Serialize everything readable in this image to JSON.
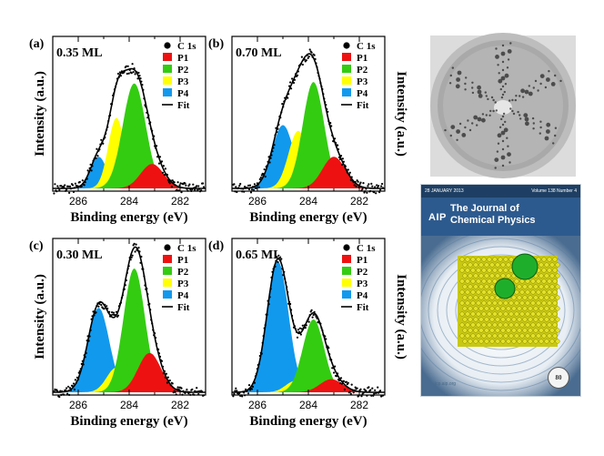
{
  "chart_data": [
    {
      "type": "area",
      "panel_label": "(a)",
      "coverage": "0.35 ML",
      "xlabel": "Binding energy (eV)",
      "ylabel": "Intensity (a.u.)",
      "x_reversed": true,
      "xlim": [
        287,
        281
      ],
      "xticks": [
        "286",
        "284",
        "282"
      ],
      "legend": [
        "C 1s",
        "P1",
        "P2",
        "P3",
        "P4",
        "Fit"
      ],
      "series": [
        {
          "name": "P1",
          "center": 283.1,
          "height": 0.17,
          "width": 0.45
        },
        {
          "name": "P2",
          "center": 283.8,
          "height": 0.73,
          "width": 0.45
        },
        {
          "name": "P3",
          "center": 284.5,
          "height": 0.49,
          "width": 0.32
        },
        {
          "name": "P4",
          "center": 285.2,
          "height": 0.22,
          "width": 0.32
        }
      ]
    },
    {
      "type": "area",
      "panel_label": "(b)",
      "coverage": "0.70 ML",
      "xlabel": "Binding energy (eV)",
      "ylabel": "Intensity (a.u.)",
      "x_reversed": true,
      "xlim": [
        287,
        281
      ],
      "xticks": [
        "286",
        "284",
        "282"
      ],
      "legend": [
        "C 1s",
        "P1",
        "P2",
        "P3",
        "P4",
        "Fit"
      ],
      "series": [
        {
          "name": "P1",
          "center": 283.0,
          "height": 0.22,
          "width": 0.45
        },
        {
          "name": "P2",
          "center": 283.8,
          "height": 0.74,
          "width": 0.42
        },
        {
          "name": "P3",
          "center": 284.4,
          "height": 0.4,
          "width": 0.38
        },
        {
          "name": "P4",
          "center": 285.0,
          "height": 0.44,
          "width": 0.42
        }
      ]
    },
    {
      "type": "area",
      "panel_label": "(c)",
      "coverage": "0.30 ML",
      "xlabel": "Binding energy (eV)",
      "ylabel": "Intensity (a.u.)",
      "x_reversed": true,
      "xlim": [
        287,
        281
      ],
      "xticks": [
        "286",
        "284",
        "282"
      ],
      "legend": [
        "C 1s",
        "P1",
        "P2",
        "P3",
        "P4",
        "Fit"
      ],
      "series": [
        {
          "name": "P1",
          "center": 283.2,
          "height": 0.27,
          "width": 0.45
        },
        {
          "name": "P2",
          "center": 283.8,
          "height": 0.85,
          "width": 0.42
        },
        {
          "name": "P3",
          "center": 284.5,
          "height": 0.17,
          "width": 0.38
        },
        {
          "name": "P4",
          "center": 285.2,
          "height": 0.58,
          "width": 0.42
        }
      ]
    },
    {
      "type": "area",
      "panel_label": "(d)",
      "coverage": "0.65 ML",
      "xlabel": "Binding energy (eV)",
      "ylabel": "Intensity (a.u.)",
      "x_reversed": true,
      "xlim": [
        287,
        281
      ],
      "xticks": [
        "286",
        "284",
        "282"
      ],
      "legend": [
        "C 1s",
        "P1",
        "P2",
        "P3",
        "P4",
        "Fit"
      ],
      "series": [
        {
          "name": "P1",
          "center": 283.1,
          "height": 0.09,
          "width": 0.45
        },
        {
          "name": "P2",
          "center": 283.8,
          "height": 0.5,
          "width": 0.42
        },
        {
          "name": "P3",
          "center": 284.5,
          "height": 0.08,
          "width": 0.38
        },
        {
          "name": "P4",
          "center": 285.2,
          "height": 0.9,
          "width": 0.42
        }
      ]
    }
  ],
  "colors": {
    "P1": "#ee1111",
    "P2": "#33cc11",
    "P3": "#ffff00",
    "P4": "#1199ee",
    "data": "#000000"
  },
  "cover": {
    "date": "28 JANUARY 2013",
    "volume": "Volume 138 Number 4",
    "publisher": "AIP",
    "title_line1": "The Journal of",
    "title_line2": "Chemical Physics",
    "url": "jcp.aip.org",
    "anniversary": "80"
  }
}
